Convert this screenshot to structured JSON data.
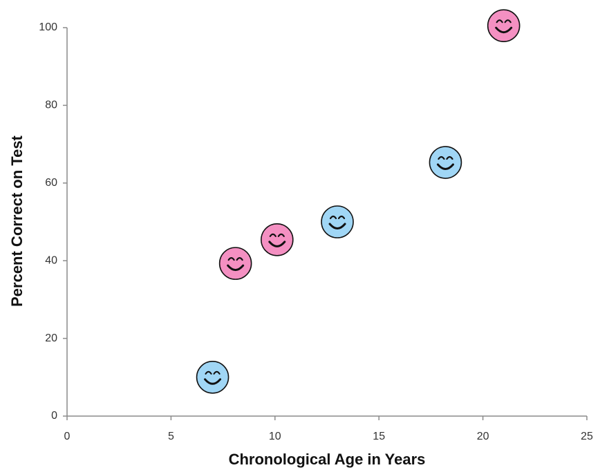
{
  "chart_data": {
    "type": "scatter",
    "x_label": "Chronological Age in Years",
    "y_label": "Percent Correct on Test",
    "series": [
      {
        "color": "#f490c2",
        "x": [
          8.1,
          10.1,
          21.0
        ],
        "y": [
          39.3,
          45.4,
          100.5
        ]
      },
      {
        "color": "#a0d6f5",
        "x": [
          7.0,
          13.0,
          18.2
        ],
        "y": [
          10.0,
          50.0,
          65.3
        ]
      }
    ],
    "xlim": [
      0,
      25
    ],
    "xticks": [
      0,
      5,
      10,
      15,
      20,
      25
    ],
    "ylim": [
      0,
      100
    ],
    "yticks": [
      0,
      20,
      40,
      60,
      80,
      100
    ],
    "grid": false
  }
}
